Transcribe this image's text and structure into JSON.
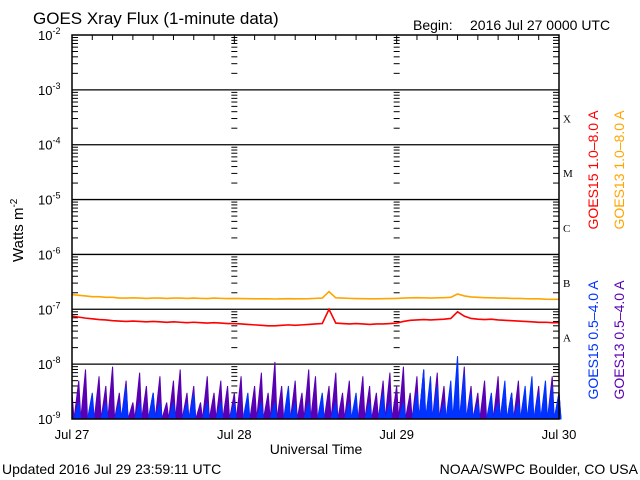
{
  "chart_data": {
    "type": "line",
    "title": "GOES Xray Flux (1-minute data)",
    "begin_label": "Begin:",
    "begin_value": "2016 Jul 27 0000 UTC",
    "ylabel": "Watts m",
    "ylabel_sup": "-2",
    "xlabel": "Universal Time",
    "yscale": "log",
    "ylim": [
      1e-09,
      0.01
    ],
    "y_ticks": [
      {
        "base": "10",
        "exp": "-2"
      },
      {
        "base": "10",
        "exp": "-3"
      },
      {
        "base": "10",
        "exp": "-4"
      },
      {
        "base": "10",
        "exp": "-5"
      },
      {
        "base": "10",
        "exp": "-6"
      },
      {
        "base": "10",
        "exp": "-7"
      },
      {
        "base": "10",
        "exp": "-8"
      },
      {
        "base": "10",
        "exp": "-9"
      }
    ],
    "x_range_hours": [
      0,
      72
    ],
    "x_ticks": [
      {
        "label": "Jul 27",
        "hour": 0
      },
      {
        "label": "Jul 28",
        "hour": 24
      },
      {
        "label": "Jul 29",
        "hour": 48
      },
      {
        "label": "Jul 30",
        "hour": 72
      }
    ],
    "flare_classes": [
      {
        "label": "X",
        "level": 0.0001
      },
      {
        "label": "M",
        "level": 1e-05
      },
      {
        "label": "C",
        "level": 1e-06
      },
      {
        "label": "B",
        "level": 1e-07
      },
      {
        "label": "A",
        "level": 1e-08
      }
    ],
    "sample_interval_hours": 1,
    "series": [
      {
        "name": "GOES15 1.0-8.0 A",
        "color": "#ff0000",
        "scale": 1e-08,
        "style": "line",
        "values": [
          7.5,
          7.2,
          6.9,
          6.7,
          6.5,
          6.4,
          6.2,
          6.1,
          6.0,
          6.1,
          6.0,
          5.9,
          6.0,
          5.9,
          5.8,
          5.9,
          5.8,
          5.7,
          5.8,
          5.7,
          5.6,
          5.7,
          5.6,
          5.5,
          5.5,
          5.4,
          5.3,
          5.2,
          5.1,
          5.0,
          5.0,
          5.1,
          5.2,
          5.1,
          5.2,
          5.3,
          5.4,
          5.5,
          10,
          5.6,
          5.5,
          5.4,
          5.5,
          5.4,
          5.3,
          5.4,
          5.4,
          5.5,
          5.6,
          6.0,
          6.3,
          6.4,
          6.5,
          6.4,
          6.5,
          6.6,
          6.8,
          9.0,
          7.5,
          6.8,
          6.6,
          6.5,
          6.6,
          6.4,
          6.3,
          6.2,
          6.1,
          6.0,
          5.9,
          5.8,
          5.8,
          5.7,
          5.7
        ]
      },
      {
        "name": "GOES13 1.0-8.0 A",
        "color": "#ffa500",
        "scale": 1e-07,
        "style": "line",
        "values": [
          1.85,
          1.8,
          1.75,
          1.7,
          1.7,
          1.65,
          1.65,
          1.6,
          1.6,
          1.62,
          1.6,
          1.58,
          1.6,
          1.6,
          1.58,
          1.6,
          1.6,
          1.58,
          1.6,
          1.58,
          1.57,
          1.6,
          1.58,
          1.57,
          1.58,
          1.57,
          1.56,
          1.55,
          1.55,
          1.55,
          1.54,
          1.55,
          1.56,
          1.55,
          1.55,
          1.56,
          1.58,
          1.6,
          2.1,
          1.62,
          1.6,
          1.58,
          1.57,
          1.56,
          1.55,
          1.55,
          1.56,
          1.57,
          1.58,
          1.6,
          1.62,
          1.63,
          1.62,
          1.6,
          1.62,
          1.63,
          1.65,
          1.9,
          1.75,
          1.68,
          1.65,
          1.63,
          1.62,
          1.6,
          1.6,
          1.58,
          1.58,
          1.56,
          1.55,
          1.55,
          1.53,
          1.52,
          1.52
        ]
      },
      {
        "name": "GOES13 0.5-4.0 A",
        "color": "#5a00b4",
        "scale": 1e-09,
        "style": "spikes",
        "values": [
          3,
          5,
          8,
          2,
          6,
          4,
          9,
          3,
          5,
          2,
          7,
          4,
          3,
          6,
          2,
          5,
          8,
          3,
          4,
          2,
          6,
          3,
          5,
          4,
          3,
          6,
          2,
          4,
          7,
          3,
          11,
          4,
          2,
          5,
          3,
          8,
          6,
          2,
          4,
          7,
          3,
          5,
          2,
          6,
          4,
          3,
          5,
          7,
          4,
          9,
          3,
          6,
          8,
          5,
          7,
          4,
          3,
          6,
          9,
          4,
          3,
          5,
          2,
          6,
          4,
          3,
          5,
          2,
          3,
          4,
          2,
          6,
          3
        ]
      },
      {
        "name": "GOES15 0.5-4.0 A",
        "color": "#0033ff",
        "scale": 1e-09,
        "style": "spikes",
        "values": [
          1,
          2,
          1,
          3,
          1,
          2,
          1,
          2,
          4,
          1,
          2,
          1,
          3,
          2,
          1,
          2,
          1,
          2,
          3,
          1,
          2,
          1,
          2,
          1,
          2,
          1,
          3,
          1,
          2,
          1,
          2,
          1,
          4,
          2,
          1,
          2,
          1,
          3,
          1,
          2,
          1,
          2,
          3,
          1,
          2,
          1,
          3,
          2,
          1,
          2,
          1,
          3,
          8,
          6,
          4,
          2,
          5,
          14,
          7,
          3,
          2,
          1,
          3,
          2,
          5,
          3,
          2,
          4,
          6,
          3,
          5,
          4,
          3
        ]
      }
    ],
    "legend_placement": "right-vertical",
    "grid": "horizontal-decades"
  },
  "footer": {
    "updated": "Updated 2016 Jul 29 23:59:11 UTC",
    "credit": "NOAA/SWPC Boulder, CO USA"
  }
}
